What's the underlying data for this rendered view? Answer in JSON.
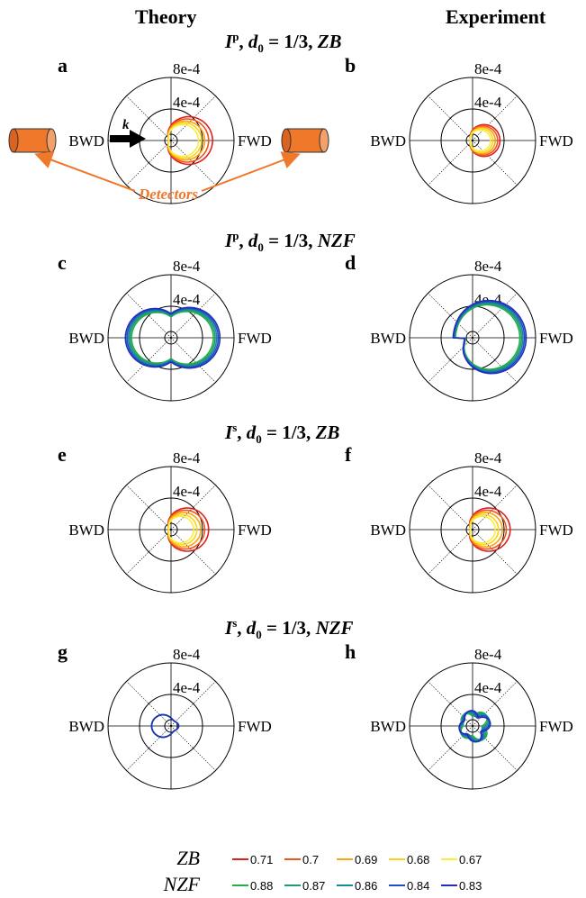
{
  "headers": {
    "left": "Theory",
    "right": "Experiment"
  },
  "row_titles": [
    {
      "sym": "I",
      "sup": "p",
      "d": "d",
      "sub": "0",
      "eq": " = 1/3, ",
      "cond": "ZB"
    },
    {
      "sym": "I",
      "sup": "p",
      "d": "d",
      "sub": "0",
      "eq": " = 1/3, ",
      "cond": "NZF"
    },
    {
      "sym": "I",
      "sup": "s",
      "d": "d",
      "sub": "0",
      "eq": " = 1/3, ",
      "cond": "ZB"
    },
    {
      "sym": "I",
      "sup": "s",
      "d": "d",
      "sub": "0",
      "eq": " = 1/3, ",
      "cond": "NZF"
    }
  ],
  "panel_letters": [
    "a",
    "b",
    "c",
    "d",
    "e",
    "f",
    "g",
    "h"
  ],
  "annotations": {
    "detectors": "Detectors",
    "k": "k"
  },
  "colors": {
    "zb": [
      "#e0201e",
      "#f0561c",
      "#fba40f",
      "#fdd21a",
      "#f8ee3c"
    ],
    "nzf": [
      "#23b04a",
      "#1e9e68",
      "#1a86a0",
      "#1f4fc8",
      "#2030b8"
    ],
    "detector": "#f0782a"
  },
  "legend": {
    "zb_label": "ZB",
    "nzf_label": "NZF",
    "zb_values": [
      "0.71",
      "0.7",
      "0.69",
      "0.68",
      "0.67"
    ],
    "nzf_values": [
      "0.88",
      "0.87",
      "0.86",
      "0.84",
      "0.83"
    ]
  },
  "chart_data": [
    {
      "panel": "a",
      "type": "polar",
      "rlim": [
        0,
        0.0008
      ],
      "r_ticks": [
        "4e-4",
        "8e-4"
      ],
      "theta_labels": [
        "FWD",
        "BWD"
      ],
      "family": "zb",
      "shape": "forward_lobe",
      "peak_r": [
        0.0005,
        0.00045,
        0.0004,
        0.00036,
        0.00032
      ]
    },
    {
      "panel": "b",
      "type": "polar",
      "rlim": [
        0,
        0.0008
      ],
      "r_ticks": [
        "4e-4",
        "8e-4"
      ],
      "theta_labels": [
        "FWD",
        "BWD"
      ],
      "family": "zb",
      "shape": "forward_lobe",
      "peak_r": [
        0.00032,
        0.00029,
        0.00026,
        0.00023,
        0.0002
      ]
    },
    {
      "panel": "c",
      "type": "polar",
      "rlim": [
        0,
        0.0008
      ],
      "r_ticks": [
        "4e-4",
        "8e-4"
      ],
      "theta_labels": [
        "FWD",
        "BWD"
      ],
      "family": "nzf",
      "shape": "peanut",
      "peak_r": [
        0.00052,
        0.00054,
        0.00056,
        0.00058,
        0.0006
      ]
    },
    {
      "panel": "d",
      "type": "polar",
      "rlim": [
        0,
        0.0008
      ],
      "r_ticks": [
        "4e-4",
        "8e-4"
      ],
      "theta_labels": [
        "FWD",
        "BWD"
      ],
      "family": "nzf",
      "shape": "forward_hook",
      "peak_r": [
        0.0006,
        0.00062,
        0.00064,
        0.00066,
        0.00068
      ]
    },
    {
      "panel": "e",
      "type": "polar",
      "rlim": [
        0,
        0.0008
      ],
      "r_ticks": [
        "4e-4",
        "8e-4"
      ],
      "theta_labels": [
        "FWD",
        "BWD"
      ],
      "family": "zb",
      "shape": "forward_lobe",
      "peak_r": [
        0.00045,
        0.0004,
        0.00035,
        0.0003,
        0.00026
      ]
    },
    {
      "panel": "f",
      "type": "polar",
      "rlim": [
        0,
        0.0008
      ],
      "r_ticks": [
        "4e-4",
        "8e-4"
      ],
      "theta_labels": [
        "FWD",
        "BWD"
      ],
      "family": "zb",
      "shape": "forward_lobe",
      "peak_r": [
        0.00045,
        0.0004,
        0.00035,
        0.0003,
        0.00026
      ]
    },
    {
      "panel": "g",
      "type": "polar",
      "rlim": [
        0,
        0.0008
      ],
      "r_ticks": [
        "4e-4",
        "8e-4"
      ],
      "theta_labels": [
        "FWD",
        "BWD"
      ],
      "family": "nzf",
      "shape": "backward_lobe",
      "peak_r": [
        0.00023,
        0.00023,
        0.00023,
        0.00023,
        0.00023
      ]
    },
    {
      "panel": "h",
      "type": "polar",
      "rlim": [
        0,
        0.0008
      ],
      "r_ticks": [
        "4e-4",
        "8e-4"
      ],
      "theta_labels": [
        "FWD",
        "BWD"
      ],
      "family": "nzf",
      "shape": "scribble",
      "peak_r": [
        0.0002,
        0.0002,
        0.0002,
        0.0002,
        0.0002
      ]
    }
  ]
}
